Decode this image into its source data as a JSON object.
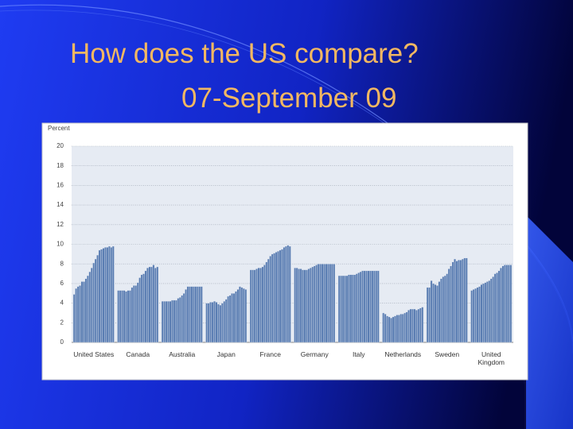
{
  "slide": {
    "title": [
      "How does the US compare?",
      "07-September 09"
    ]
  },
  "chart_data": {
    "type": "grouped-bar",
    "y_axis_label": "Percent",
    "color": "#5a7db2",
    "grid": true,
    "ylim": [
      0,
      20
    ],
    "yticks": [
      0,
      2,
      4,
      6,
      8,
      10,
      12,
      14,
      16,
      18,
      20
    ],
    "groups": [
      {
        "name": "United States",
        "values": [
          4.9,
          5.5,
          5.7,
          5.8,
          6.2,
          6.2,
          6.5,
          6.8,
          7.2,
          7.6,
          8.1,
          8.5,
          8.9,
          9.4,
          9.5,
          9.6,
          9.7,
          9.7,
          9.8,
          9.7,
          9.8
        ]
      },
      {
        "name": "Canada",
        "values": [
          5.3,
          5.3,
          5.3,
          5.3,
          5.2,
          5.3,
          5.3,
          5.6,
          5.8,
          5.8,
          6.1,
          6.6,
          6.9,
          7.0,
          7.3,
          7.6,
          7.7,
          7.7,
          7.9,
          7.6,
          7.7
        ]
      },
      {
        "name": "Australia",
        "values": [
          4.2,
          4.2,
          4.2,
          4.2,
          4.2,
          4.3,
          4.3,
          4.3,
          4.5,
          4.6,
          4.8,
          5.0,
          5.4,
          5.7,
          5.7,
          5.7,
          5.7,
          5.7,
          5.7,
          5.7,
          5.7
        ]
      },
      {
        "name": "Japan",
        "values": [
          4.0,
          4.0,
          4.1,
          4.1,
          4.2,
          4.1,
          3.9,
          3.8,
          4.0,
          4.2,
          4.4,
          4.7,
          4.8,
          5.0,
          5.0,
          5.2,
          5.4,
          5.7,
          5.6,
          5.5,
          5.4
        ]
      },
      {
        "name": "France",
        "values": [
          7.4,
          7.4,
          7.4,
          7.5,
          7.6,
          7.6,
          7.7,
          7.9,
          8.2,
          8.5,
          8.8,
          9.0,
          9.1,
          9.2,
          9.3,
          9.4,
          9.5,
          9.7,
          9.8,
          9.9,
          9.8
        ]
      },
      {
        "name": "Germany",
        "values": [
          7.6,
          7.6,
          7.5,
          7.5,
          7.4,
          7.4,
          7.4,
          7.5,
          7.6,
          7.7,
          7.8,
          7.9,
          8.0,
          8.0,
          8.0,
          8.0,
          8.0,
          8.0,
          8.0,
          8.0,
          8.0
        ]
      },
      {
        "name": "Italy",
        "values": [
          6.8,
          6.8,
          6.8,
          6.8,
          6.8,
          6.9,
          6.9,
          6.9,
          6.9,
          7.0,
          7.1,
          7.2,
          7.3,
          7.3,
          7.3,
          7.3,
          7.3,
          7.3,
          7.3,
          7.3,
          7.3
        ]
      },
      {
        "name": "Netherlands",
        "values": [
          3.0,
          2.9,
          2.7,
          2.6,
          2.5,
          2.6,
          2.7,
          2.8,
          2.8,
          2.9,
          2.9,
          3.0,
          3.1,
          3.3,
          3.4,
          3.4,
          3.4,
          3.3,
          3.4,
          3.5,
          3.6
        ]
      },
      {
        "name": "Sweden",
        "values": [
          5.6,
          5.6,
          6.3,
          6.0,
          5.9,
          5.8,
          6.2,
          6.5,
          6.7,
          6.8,
          7.0,
          7.5,
          7.8,
          8.2,
          8.5,
          8.3,
          8.4,
          8.4,
          8.5,
          8.6,
          8.6
        ]
      },
      {
        "name": "United Kingdom",
        "values": [
          5.3,
          5.4,
          5.5,
          5.6,
          5.7,
          5.9,
          6.0,
          6.1,
          6.2,
          6.3,
          6.5,
          6.7,
          7.0,
          7.1,
          7.3,
          7.6,
          7.8,
          7.9,
          7.9,
          7.9,
          7.9
        ]
      }
    ]
  }
}
